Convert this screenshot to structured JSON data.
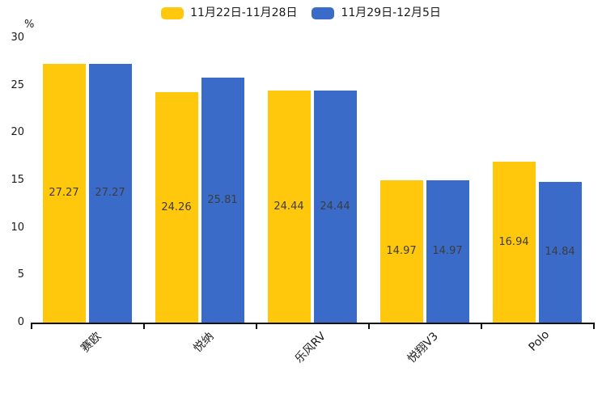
{
  "chart_data": {
    "type": "bar",
    "title": "",
    "categories": [
      "赛欧",
      "悦纳",
      "乐风RV",
      "悦翔V3",
      "Polo"
    ],
    "series": [
      {
        "name": "11月22日-11月28日",
        "color": "#FFC80D",
        "values": [
          27.27,
          24.26,
          24.44,
          14.97,
          16.94
        ]
      },
      {
        "name": "11月29日-12月5日",
        "color": "#3A6BC9",
        "values": [
          27.27,
          25.81,
          24.44,
          14.97,
          14.84
        ]
      }
    ],
    "value_labels": [
      [
        "27.27",
        "24.26",
        "24.44",
        "14.97",
        "16.94"
      ],
      [
        "27.27",
        "25.81",
        "24.44",
        "14.97",
        "14.84"
      ]
    ],
    "xlabel": "",
    "ylabel": "%",
    "ylim": [
      0,
      30
    ],
    "yticks": [
      "0",
      "5",
      "10",
      "15",
      "20",
      "25",
      "30"
    ],
    "grid": false,
    "legend_position": "top",
    "value_label_color": "#3d3d3d",
    "axis_color": "#111111"
  }
}
